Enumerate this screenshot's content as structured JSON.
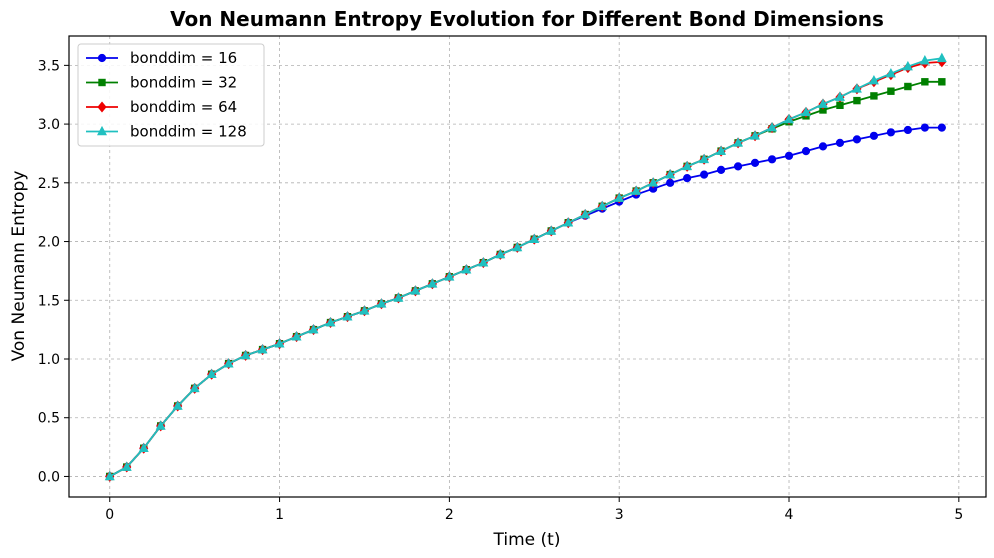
{
  "chart_data": {
    "type": "line",
    "title": "Von Neumann Entropy Evolution for Different Bond Dimensions",
    "xlabel": "Time (t)",
    "ylabel": "Von Neumann Entropy",
    "xlim": [
      -0.24,
      5.16
    ],
    "ylim": [
      -0.175,
      3.75
    ],
    "xticks": [
      0,
      1,
      2,
      3,
      4,
      5
    ],
    "yticks": [
      0.0,
      0.5,
      1.0,
      1.5,
      2.0,
      2.5,
      3.0,
      3.5
    ],
    "grid": true,
    "legend_position": "upper-left",
    "x": [
      0.0,
      0.1,
      0.2,
      0.3,
      0.4,
      0.5,
      0.6,
      0.7,
      0.8,
      0.9,
      1.0,
      1.1,
      1.2,
      1.3,
      1.4,
      1.5,
      1.6,
      1.7,
      1.8,
      1.9,
      2.0,
      2.1,
      2.2,
      2.3,
      2.4,
      2.5,
      2.6,
      2.7,
      2.8,
      2.9,
      3.0,
      3.1,
      3.2,
      3.3,
      3.4,
      3.5,
      3.6,
      3.7,
      3.8,
      3.9,
      4.0,
      4.1,
      4.2,
      4.3,
      4.4,
      4.5,
      4.6,
      4.7,
      4.8,
      4.9
    ],
    "series": [
      {
        "name": "bonddim = 16",
        "color": "#0000ee",
        "marker": "circle",
        "values": [
          0.0,
          0.08,
          0.24,
          0.43,
          0.6,
          0.75,
          0.87,
          0.96,
          1.03,
          1.08,
          1.13,
          1.19,
          1.25,
          1.31,
          1.36,
          1.41,
          1.47,
          1.52,
          1.58,
          1.64,
          1.7,
          1.76,
          1.82,
          1.89,
          1.95,
          2.02,
          2.09,
          2.16,
          2.22,
          2.28,
          2.34,
          2.4,
          2.45,
          2.5,
          2.54,
          2.57,
          2.61,
          2.64,
          2.67,
          2.7,
          2.73,
          2.77,
          2.81,
          2.84,
          2.87,
          2.9,
          2.93,
          2.95,
          2.97,
          2.97
        ]
      },
      {
        "name": "bonddim = 32",
        "color": "#008000",
        "marker": "square",
        "values": [
          0.0,
          0.08,
          0.24,
          0.43,
          0.6,
          0.75,
          0.87,
          0.96,
          1.03,
          1.08,
          1.13,
          1.19,
          1.25,
          1.31,
          1.36,
          1.41,
          1.47,
          1.52,
          1.58,
          1.64,
          1.7,
          1.76,
          1.82,
          1.89,
          1.95,
          2.02,
          2.09,
          2.16,
          2.23,
          2.3,
          2.37,
          2.43,
          2.5,
          2.57,
          2.64,
          2.7,
          2.77,
          2.84,
          2.9,
          2.96,
          3.02,
          3.07,
          3.12,
          3.16,
          3.2,
          3.24,
          3.28,
          3.32,
          3.36,
          3.36
        ]
      },
      {
        "name": "bonddim = 64",
        "color": "#ee0000",
        "marker": "diamond",
        "values": [
          0.0,
          0.08,
          0.24,
          0.43,
          0.6,
          0.75,
          0.87,
          0.96,
          1.03,
          1.08,
          1.13,
          1.19,
          1.25,
          1.31,
          1.36,
          1.41,
          1.47,
          1.52,
          1.58,
          1.64,
          1.7,
          1.76,
          1.82,
          1.89,
          1.95,
          2.02,
          2.09,
          2.16,
          2.23,
          2.3,
          2.37,
          2.43,
          2.5,
          2.57,
          2.64,
          2.7,
          2.77,
          2.84,
          2.9,
          2.97,
          3.04,
          3.1,
          3.17,
          3.23,
          3.3,
          3.36,
          3.42,
          3.48,
          3.52,
          3.53
        ]
      },
      {
        "name": "bonddim = 128",
        "color": "#20c0c0",
        "marker": "triangle",
        "values": [
          0.0,
          0.08,
          0.24,
          0.43,
          0.6,
          0.75,
          0.87,
          0.96,
          1.03,
          1.08,
          1.13,
          1.19,
          1.25,
          1.31,
          1.36,
          1.41,
          1.47,
          1.52,
          1.58,
          1.64,
          1.7,
          1.76,
          1.82,
          1.89,
          1.95,
          2.02,
          2.09,
          2.16,
          2.23,
          2.3,
          2.37,
          2.43,
          2.5,
          2.57,
          2.64,
          2.7,
          2.77,
          2.84,
          2.9,
          2.97,
          3.04,
          3.1,
          3.17,
          3.23,
          3.3,
          3.37,
          3.43,
          3.49,
          3.54,
          3.56
        ]
      }
    ]
  }
}
